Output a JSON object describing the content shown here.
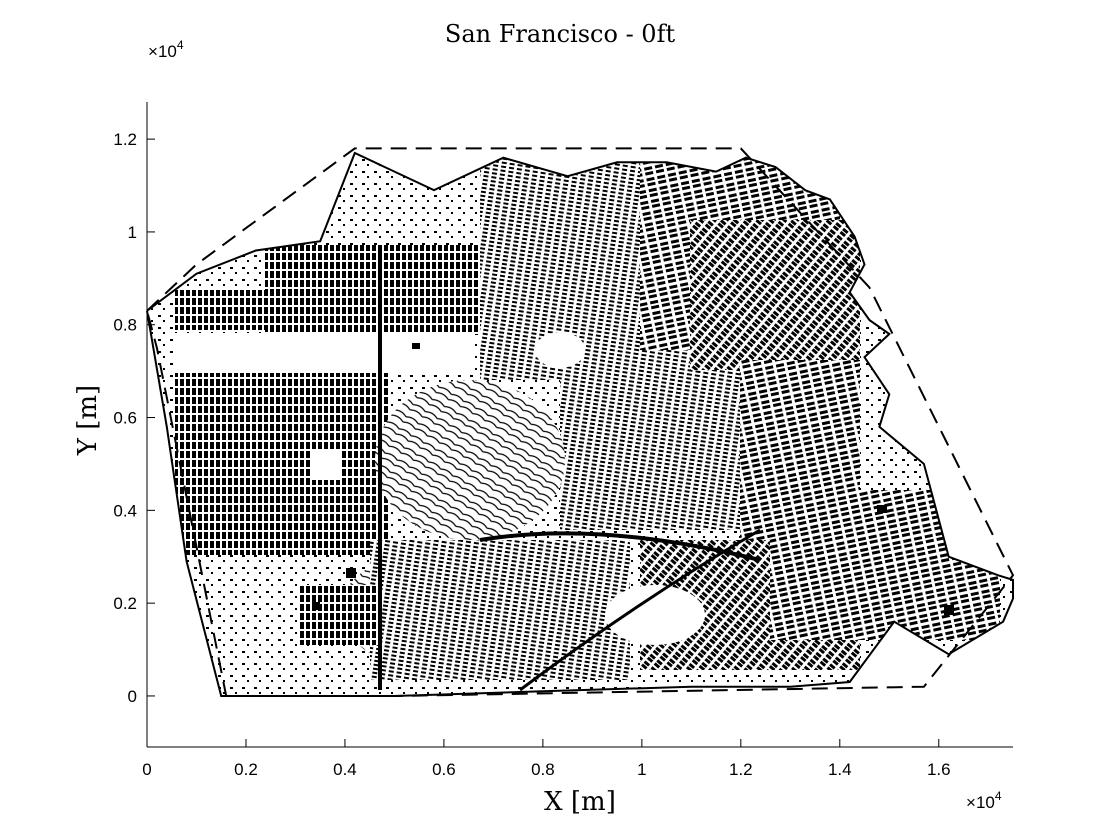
{
  "chart_data": {
    "type": "scatter",
    "title": "San Francisco - 0ft",
    "xlabel": "X [m]",
    "ylabel": "Y [m]",
    "x_scale_base": "10",
    "x_scale_exp": "4",
    "y_scale_base": "10",
    "y_scale_exp": "4",
    "xlim": [
      0,
      1.75
    ],
    "ylim": [
      -0.11,
      1.28
    ],
    "x_ticks": [
      "0",
      "0.2",
      "0.4",
      "0.6",
      "0.8",
      "1",
      "1.2",
      "1.4",
      "1.6"
    ],
    "x_tick_values": [
      0,
      0.2,
      0.4,
      0.6,
      0.8,
      1.0,
      1.2,
      1.4,
      1.6
    ],
    "y_ticks": [
      "0",
      "0.2",
      "0.4",
      "0.6",
      "0.8",
      "1",
      "1.2"
    ],
    "y_tick_values": [
      0,
      0.2,
      0.4,
      0.6,
      0.8,
      1.0,
      1.2
    ],
    "grid": false,
    "series": [
      {
        "style": "solid",
        "points": [
          [
            0.0,
            0.83
          ],
          [
            0.1,
            0.91
          ],
          [
            0.22,
            0.96
          ],
          [
            0.35,
            0.98
          ],
          [
            0.42,
            1.17
          ],
          [
            0.58,
            1.09
          ],
          [
            0.72,
            1.16
          ],
          [
            0.85,
            1.12
          ],
          [
            0.95,
            1.15
          ],
          [
            1.05,
            1.15
          ],
          [
            1.15,
            1.13
          ],
          [
            1.21,
            1.16
          ],
          [
            1.27,
            1.14
          ],
          [
            1.33,
            1.09
          ],
          [
            1.38,
            1.07
          ],
          [
            1.43,
            0.99
          ],
          [
            1.45,
            0.93
          ],
          [
            1.42,
            0.87
          ],
          [
            1.46,
            0.81
          ],
          [
            1.5,
            0.78
          ],
          [
            1.45,
            0.73
          ],
          [
            1.5,
            0.65
          ],
          [
            1.48,
            0.58
          ],
          [
            1.57,
            0.5
          ],
          [
            1.6,
            0.38
          ],
          [
            1.62,
            0.3
          ],
          [
            1.72,
            0.26
          ],
          [
            1.75,
            0.25
          ],
          [
            1.75,
            0.21
          ],
          [
            1.73,
            0.16
          ],
          [
            1.62,
            0.09
          ],
          [
            1.51,
            0.16
          ],
          [
            1.42,
            0.03
          ],
          [
            1.3,
            0.02
          ],
          [
            1.1,
            0.02
          ],
          [
            0.8,
            0.01
          ],
          [
            0.5,
            0.0
          ],
          [
            0.15,
            0.0
          ],
          [
            0.08,
            0.29
          ],
          [
            0.04,
            0.58
          ],
          [
            0.0,
            0.83
          ]
        ]
      },
      {
        "style": "dashed",
        "points": [
          [
            0.0,
            0.83
          ],
          [
            0.1,
            0.93
          ],
          [
            0.42,
            1.18
          ],
          [
            1.2,
            1.18
          ],
          [
            1.46,
            0.88
          ],
          [
            1.75,
            0.26
          ],
          [
            1.57,
            0.02
          ],
          [
            0.5,
            0.0
          ],
          [
            0.16,
            0.0
          ],
          [
            0.02,
            0.75
          ],
          [
            0.0,
            0.83
          ]
        ]
      }
    ]
  }
}
